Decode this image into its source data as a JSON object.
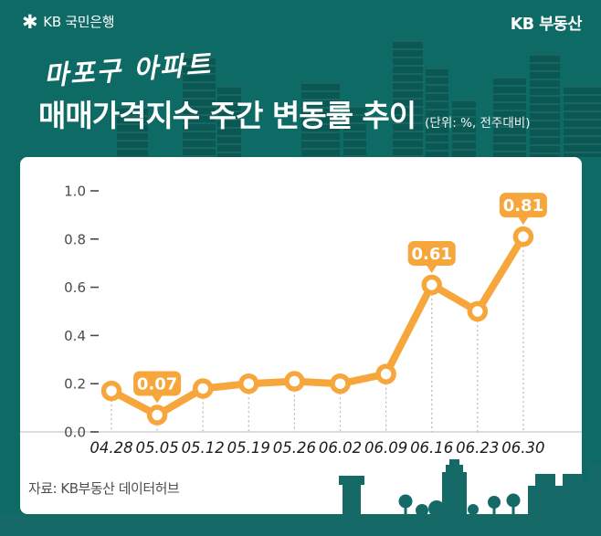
{
  "header": {
    "bank_name": "KB 국민은행",
    "brand": "KB 부동산",
    "logo_icon": "kb-star-icon"
  },
  "title": {
    "region": "마포구 아파트",
    "main": "매매가격지수 주간 변동률 추이",
    "unit_note": "(단위: %, 전주대비)"
  },
  "chart_data": {
    "type": "line",
    "title": "마포구 아파트 매매가격지수 주간 변동률 추이",
    "unit": "%, 전주대비",
    "categories": [
      "04.28",
      "05.05",
      "05.12",
      "05.19",
      "05.26",
      "06.02",
      "06.09",
      "06.16",
      "06.23",
      "06.30"
    ],
    "values": [
      0.17,
      0.07,
      0.18,
      0.2,
      0.21,
      0.2,
      0.24,
      0.61,
      0.5,
      0.81
    ],
    "labeled_points": [
      {
        "index": 1,
        "label": "0.07"
      },
      {
        "index": 7,
        "label": "0.61"
      },
      {
        "index": 9,
        "label": "0.81"
      }
    ],
    "y_ticks": [
      1.0,
      0.8,
      0.6,
      0.4,
      0.2,
      0.0
    ],
    "ylim": [
      0,
      1.1
    ],
    "grid": "dotted-vertical-droplines-plus-zero-baseline",
    "legend": "none",
    "line_color": "#f6a63a",
    "marker": "circle-orange-ring-white-core"
  },
  "footer": {
    "source": "자료: KB부동산 데이터허브"
  },
  "colors": {
    "background": "#0e6a65",
    "silhouette": "#156a68",
    "card": "#ffffff",
    "accent": "#f6a63a",
    "axis_label": "#4a4a4a",
    "x_label": "#1b1b1b",
    "baseline": "#dcdcdc",
    "dropline": "#b8b8b8",
    "source_text": "#4f4f4f"
  }
}
